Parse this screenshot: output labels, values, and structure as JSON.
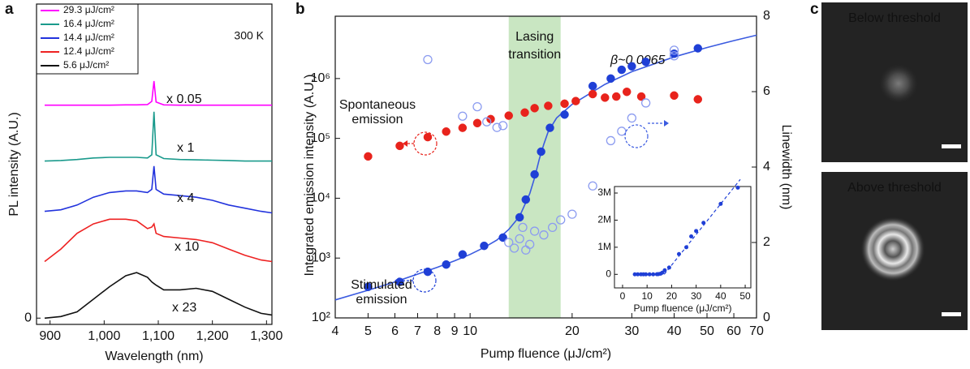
{
  "chart_data": [
    {
      "type": "line",
      "label": "a",
      "xlabel": "Wavelength (nm)",
      "ylabel": "PL intensity (A.U.)",
      "xlim": [
        875,
        1310
      ],
      "xticks": [
        900,
        {
          "value": 1000,
          "label": "1,000"
        },
        {
          "value": 1100,
          "label": "1,100"
        },
        {
          "value": 1200,
          "label": "1,200"
        },
        {
          "value": 1300,
          "label": "1,300"
        }
      ],
      "ylim": [
        -0.2,
        10
      ],
      "yticks": [
        0
      ],
      "annotation": "300 K",
      "x": [
        890,
        920,
        950,
        980,
        1010,
        1040,
        1060,
        1080,
        1088,
        1092,
        1096,
        1110,
        1140,
        1170,
        1200,
        1230,
        1260,
        1290,
        1310
      ],
      "series": [
        {
          "name": "29.3 μJ/cm²",
          "color": "#ff00ff",
          "scale_label": "x 0.05",
          "values": [
            6.78,
            6.78,
            6.78,
            6.78,
            6.78,
            6.79,
            6.79,
            6.8,
            6.9,
            7.55,
            6.88,
            6.79,
            6.78,
            6.78,
            6.78,
            6.78,
            6.78,
            6.78,
            6.78
          ]
        },
        {
          "name": "16.4 μJ/cm²",
          "color": "#1a9a8c",
          "scale_label": "x 1",
          "values": [
            5.0,
            5.02,
            5.05,
            5.1,
            5.12,
            5.12,
            5.12,
            5.1,
            5.2,
            6.57,
            5.2,
            5.08,
            5.05,
            5.04,
            5.03,
            5.02,
            5.0,
            5.0,
            5.0
          ]
        },
        {
          "name": "14.4 μJ/cm²",
          "color": "#2233dd",
          "scale_label": "x 4",
          "values": [
            3.4,
            3.45,
            3.6,
            3.85,
            4.0,
            4.05,
            4.05,
            4.0,
            4.1,
            4.84,
            4.1,
            3.95,
            3.9,
            3.85,
            3.75,
            3.6,
            3.5,
            3.4,
            3.35
          ]
        },
        {
          "name": "12.4 μJ/cm²",
          "color": "#ee2222",
          "scale_label": "x 10",
          "values": [
            1.8,
            2.2,
            2.7,
            3.0,
            3.15,
            3.15,
            3.1,
            2.85,
            2.9,
            3.0,
            2.7,
            2.6,
            2.55,
            2.5,
            2.4,
            2.2,
            2.0,
            1.85,
            1.8
          ]
        },
        {
          "name": "5.6 μJ/cm²",
          "color": "#111111",
          "scale_label": "x 23",
          "values": [
            0,
            0.05,
            0.2,
            0.6,
            1.0,
            1.35,
            1.45,
            1.3,
            1.15,
            1.1,
            1.05,
            0.9,
            0.9,
            0.95,
            0.85,
            0.6,
            0.35,
            0.15,
            0.1
          ]
        }
      ]
    },
    {
      "type": "scatter",
      "label": "b",
      "xlabel": "Pump fluence (μJ/cm²)",
      "ylabel": "Integrated emission intensity (A.U.)",
      "y2label": "Linewidth (nm)",
      "xscale": "log",
      "yscale": "log",
      "xlim": [
        4,
        70
      ],
      "xticks": [
        4,
        5,
        6,
        7,
        8,
        9,
        10,
        20,
        30,
        40,
        50,
        60,
        70
      ],
      "ylim": [
        100,
        11000000
      ],
      "yticks": [
        {
          "value": 100,
          "label": "10²"
        },
        {
          "value": 1000,
          "label": "10³"
        },
        {
          "value": 10000,
          "label": "10⁴"
        },
        {
          "value": 100000,
          "label": "10⁵"
        },
        {
          "value": 1000000,
          "label": "10⁶"
        }
      ],
      "y2lim": [
        0,
        8
      ],
      "y2ticks": [
        0,
        2,
        4,
        6,
        8
      ],
      "shaded_region": {
        "x": [
          13,
          18.5
        ],
        "color": "#c9e6c2",
        "text": [
          "Lasing",
          "transition"
        ]
      },
      "series": [
        {
          "color": "#1f3fd6",
          "marker": "filled",
          "text": [
            "Stimulated",
            "emission"
          ],
          "x": [
            5,
            6.2,
            7.5,
            8.5,
            9.5,
            11,
            12.5,
            14,
            14.6,
            15.5,
            16.2,
            17.2,
            19,
            23,
            26,
            28,
            30,
            33,
            40,
            47
          ],
          "values": [
            330,
            400,
            590,
            780,
            1150,
            1600,
            2200,
            4800,
            9500,
            25000,
            60000,
            150000,
            250000,
            750000,
            1000000,
            1400000,
            1600000,
            1900000,
            2600000,
            3200000
          ]
        },
        {
          "color": "#e8231c",
          "marker": "filled",
          "text": [
            "Spontaneous",
            "emission"
          ],
          "x": [
            5,
            6.2,
            7.5,
            8.5,
            9.5,
            10.5,
            11.5,
            13,
            14.5,
            15.5,
            17,
            19,
            20.5,
            23,
            25,
            27,
            29,
            32,
            40,
            47
          ],
          "values": [
            50000,
            75000,
            105000,
            130000,
            150000,
            180000,
            210000,
            240000,
            270000,
            320000,
            350000,
            380000,
            420000,
            550000,
            480000,
            500000,
            600000,
            500000,
            520000,
            450000
          ]
        },
        {
          "color": "#8c9cf0",
          "marker": "open",
          "axis": "y2",
          "x": [
            7.5,
            9.5,
            10.5,
            11.2,
            12,
            12.5,
            13,
            13.5,
            14,
            14.3,
            14.6,
            15,
            15.5,
            16.5,
            17.5,
            18.5,
            20,
            23,
            26,
            28,
            30,
            33,
            40,
            40
          ],
          "values": [
            6.85,
            5.35,
            5.6,
            5.2,
            5.05,
            5.1,
            2.0,
            1.85,
            2.1,
            2.4,
            1.8,
            1.95,
            2.3,
            2.2,
            2.4,
            2.6,
            2.75,
            3.5,
            4.7,
            4.95,
            5.3,
            5.7,
            6.95,
            7.1
          ]
        }
      ],
      "fit": {
        "color": "#3b5be0",
        "text": "β~0.0065",
        "x": [
          4,
          5,
          6,
          7,
          8,
          9,
          10,
          11,
          12,
          13,
          14,
          15,
          15.5,
          16,
          16.5,
          17,
          18,
          20,
          25,
          30,
          40,
          50,
          60,
          70
        ],
        "values": [
          200,
          290,
          400,
          540,
          700,
          900,
          1150,
          1500,
          2000,
          3000,
          5000,
          12000,
          22000,
          45000,
          80000,
          130000,
          220000,
          370000,
          800000,
          1300000,
          2300000,
          3300000,
          4300000,
          5300000
        ]
      },
      "inset": {
        "xlabel": "Pump fluence (μJ/cm²)",
        "xlim": [
          -3.3,
          52.3
        ],
        "xticks": [
          0,
          10,
          20,
          30,
          40,
          50
        ],
        "ylim": [
          -500000,
          3240000
        ],
        "yticks": [
          0,
          {
            "value": 1000000,
            "label": "1M"
          },
          {
            "value": 2000000,
            "label": "2M"
          },
          {
            "value": 3000000,
            "label": "3M"
          }
        ],
        "fit": {
          "x": [
            17,
            48
          ],
          "values": [
            0,
            3500000
          ]
        }
      }
    },
    {
      "type": "image",
      "label": "c",
      "images": [
        {
          "title": "Below threshold"
        },
        {
          "title": "Above threshold"
        }
      ]
    }
  ]
}
